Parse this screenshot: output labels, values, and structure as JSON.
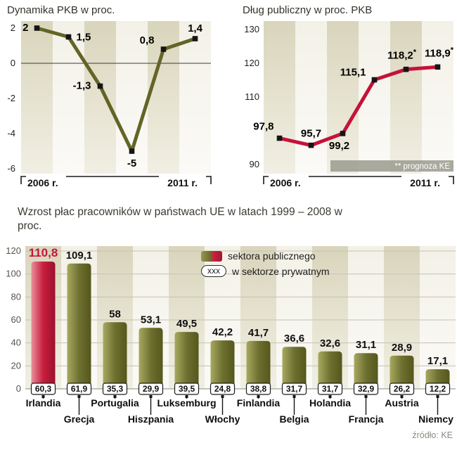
{
  "chart_data": [
    {
      "id": "gdp",
      "type": "line",
      "title": "Dynamika PKB w proc.",
      "x_years": [
        2006,
        2007,
        2008,
        2009,
        2010,
        2011
      ],
      "values": [
        2,
        1.5,
        -1.3,
        -5,
        0.8,
        1.4
      ],
      "value_labels": [
        "2",
        "1,5",
        "-1,3",
        "-5",
        "0,8",
        "1,4"
      ],
      "ylim": [
        -6,
        2
      ],
      "ytick_values": [
        2,
        0,
        -2,
        -4,
        -6
      ],
      "ytick_labels": [
        "2",
        "0",
        "-2",
        "-4",
        "-6"
      ],
      "xaxis_labels": [
        "2006 r.",
        "2011 r."
      ],
      "zero_line": true,
      "line_color": "#636426",
      "label_layout": [
        [
          -12,
          4,
          "end"
        ],
        [
          11,
          5,
          "start"
        ],
        [
          -13,
          4,
          "end"
        ],
        [
          0,
          22,
          "middle"
        ],
        [
          -13,
          -8,
          "end"
        ],
        [
          0,
          -10,
          "middle"
        ]
      ]
    },
    {
      "id": "debt",
      "type": "line",
      "title": "Dług publiczny w proc. PKB",
      "x_years": [
        2006,
        2007,
        2008,
        2009,
        2010,
        2011
      ],
      "values": [
        97.8,
        95.7,
        99.2,
        115.1,
        118.2,
        118.9
      ],
      "value_labels": [
        "97,8",
        "95,7",
        "99,2",
        "115,1",
        "118,2*",
        "118,9*"
      ],
      "forecast_flags": [
        false,
        false,
        false,
        false,
        true,
        true
      ],
      "ylim": [
        90,
        130
      ],
      "ytick_values": [
        130,
        120,
        110,
        90
      ],
      "ytick_labels": [
        "130",
        "120",
        "110",
        "90"
      ],
      "xaxis_labels": [
        "2006 r.",
        "2011 r."
      ],
      "note": "** prognoza KE",
      "line_color": "#c41238",
      "label_layout": [
        [
          -8,
          -12,
          "end"
        ],
        [
          0,
          -12,
          "middle"
        ],
        [
          -5,
          22,
          "middle"
        ],
        [
          -12,
          -6,
          "end"
        ],
        [
          -6,
          -15,
          "middle"
        ],
        [
          2,
          -15,
          "middle"
        ]
      ]
    },
    {
      "id": "wages",
      "type": "bar",
      "title": "Wzrost płac pracowników w państwach UE w latach 1999 – 2008 w proc.",
      "categories": [
        "Irlandia",
        "Grecja",
        "Portugalia",
        "Hiszpania",
        "Luksemburg",
        "Włochy",
        "Finlandia",
        "Belgia",
        "Holandia",
        "Francja",
        "Austria",
        "Niemcy"
      ],
      "series": [
        {
          "name": "sektora publicznego",
          "values": [
            110.8,
            109.1,
            58,
            53.1,
            49.5,
            42.2,
            41.7,
            36.6,
            32.6,
            31.1,
            28.9,
            17.1
          ],
          "labels": [
            "110,8",
            "109,1",
            "58",
            "53,1",
            "49,5",
            "42,2",
            "41,7",
            "36,6",
            "32,6",
            "31,1",
            "28,9",
            "17,1"
          ]
        },
        {
          "name": "w sektorze prywatnym",
          "values": [
            60.3,
            61.9,
            35.3,
            29.9,
            39.5,
            24.8,
            38.8,
            31.7,
            31.7,
            32.9,
            26.2,
            12.2
          ],
          "labels": [
            "60,3",
            "61,9",
            "35,3",
            "29,9",
            "39,5",
            "24,8",
            "38,8",
            "31,7",
            "31,7",
            "32,9",
            "26,2",
            "12,2"
          ]
        }
      ],
      "ylim": [
        0,
        120
      ],
      "ytick_values": [
        120,
        100,
        80,
        60,
        40,
        20,
        0
      ],
      "highlight_index": 0,
      "highlight_category": "Irlandia",
      "bar_color": "#6e7030",
      "highlight_color": "#c8143c",
      "legend": {
        "public_label": "sektora publicznego",
        "private_box_text": "xxx",
        "private_label": "w sektorze prywatnym"
      }
    }
  ],
  "source": "źródło: KE"
}
